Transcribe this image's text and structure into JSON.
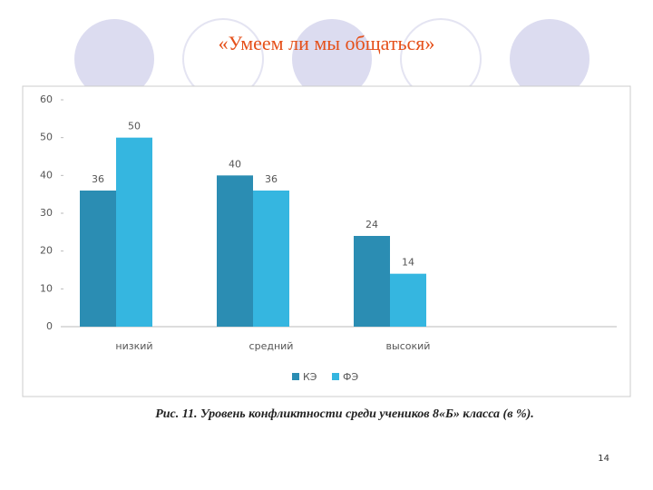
{
  "chart_data": {
    "type": "bar",
    "title": "«Умеем ли мы общаться»",
    "caption": "Рис. 11. Уровень конфликтности среди учеников 8«Б» класса (в %).",
    "page_number": "14",
    "categories": [
      "низкий",
      "средний",
      "высокий"
    ],
    "series": [
      {
        "name": "КЭ",
        "color": "#2b8db3",
        "values": [
          36,
          40,
          24
        ]
      },
      {
        "name": "ФЭ",
        "color": "#35b6e0",
        "values": [
          50,
          36,
          14
        ]
      }
    ],
    "ylim": [
      0,
      60
    ],
    "yticks": [
      0,
      10,
      20,
      30,
      40,
      50,
      60
    ],
    "grid": false
  }
}
